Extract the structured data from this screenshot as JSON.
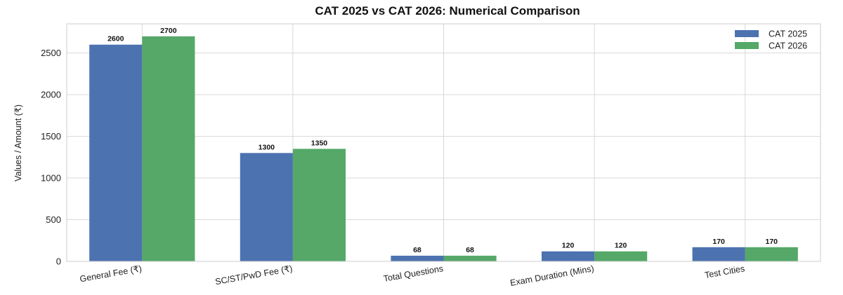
{
  "chart_data": {
    "type": "bar",
    "title": "CAT 2025 vs CAT 2026: Numerical Comparison",
    "xlabel": "",
    "ylabel": "Values / Amount (₹)",
    "ylim": [
      0,
      2850
    ],
    "yticks": [
      0,
      500,
      1000,
      1500,
      2000,
      2500
    ],
    "categories": [
      "General Fee (₹)",
      "SC/ST/PwD Fee (₹)",
      "Total Questions",
      "Exam Duration (Mins)",
      "Test Cities"
    ],
    "series": [
      {
        "name": "CAT 2025",
        "color": "#4c72b0",
        "values": [
          2600,
          1300,
          68,
          120,
          170
        ]
      },
      {
        "name": "CAT 2026",
        "color": "#55a868",
        "values": [
          2700,
          1350,
          68,
          120,
          170
        ]
      }
    ],
    "grid": true,
    "legend": "top-right"
  }
}
